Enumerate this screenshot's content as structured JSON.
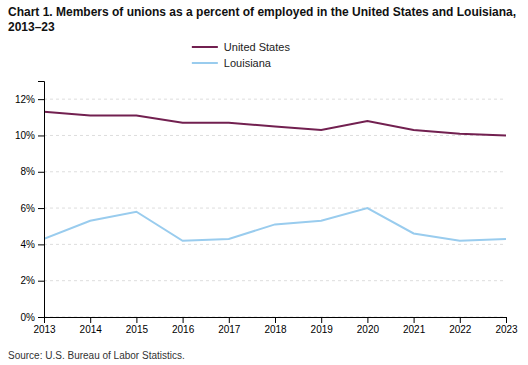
{
  "chart_data": {
    "type": "line",
    "title": "Chart 1. Members of unions as a percent of employed in the United States and Louisiana, 2013–23",
    "annotations": [
      "Source: U.S. Bureau of Labor Statistics."
    ],
    "x": [
      2013,
      2014,
      2015,
      2016,
      2017,
      2018,
      2019,
      2020,
      2021,
      2022,
      2023
    ],
    "series": [
      {
        "name": "United States",
        "color": "#722050",
        "values": [
          11.3,
          11.1,
          11.1,
          10.7,
          10.7,
          10.5,
          10.3,
          10.8,
          10.3,
          10.1,
          10.0
        ]
      },
      {
        "name": "Louisiana",
        "color": "#99CCEE",
        "values": [
          4.3,
          5.3,
          5.8,
          4.2,
          4.3,
          5.1,
          5.3,
          6.0,
          4.6,
          4.2,
          4.3
        ]
      }
    ],
    "xlim": [
      2013,
      2023
    ],
    "xticks": [
      2013,
      2014,
      2015,
      2016,
      2017,
      2018,
      2019,
      2020,
      2021,
      2022,
      2023
    ],
    "ylim": [
      0,
      13
    ],
    "yticks": [
      {
        "value": 0,
        "label": "0%"
      },
      {
        "value": 2,
        "label": "2%"
      },
      {
        "value": 4,
        "label": "4%"
      },
      {
        "value": 6,
        "label": "6%"
      },
      {
        "value": 8,
        "label": "8%"
      },
      {
        "value": 10,
        "label": "10%"
      },
      {
        "value": 12,
        "label": "12%"
      }
    ],
    "grid": true,
    "legend": "top"
  }
}
